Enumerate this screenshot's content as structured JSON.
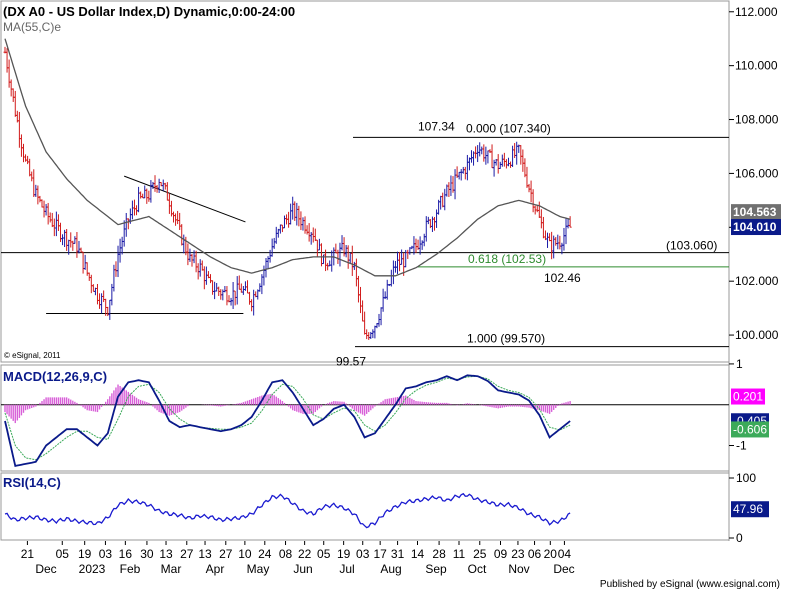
{
  "chart_data": [
    {
      "type": "line",
      "panel": "price",
      "title": "(DX A0 - US Dollar Index,D) Dynamic,0:00-24:00",
      "indicator_label": "MA(55,C)e",
      "copyright": "© eSignal, 2011",
      "ylim": [
        99.0,
        112.4
      ],
      "y_ticks": [
        "112.000",
        "110.000",
        "108.000",
        "106.000",
        "104.000",
        "102.000",
        "100.000"
      ],
      "y_tick_values": [
        112,
        110,
        108,
        106,
        104,
        102,
        100
      ],
      "x_index_range": [
        0,
        240
      ],
      "close_series": {
        "name": "DX A0 close",
        "x": [
          0,
          5,
          10,
          15,
          20,
          25,
          30,
          35,
          40,
          45,
          50,
          55,
          60,
          65,
          70,
          75,
          80,
          85,
          90,
          95,
          100,
          105,
          110,
          115,
          120,
          125,
          130,
          135,
          140,
          145,
          150,
          155,
          160,
          165,
          170,
          175,
          180,
          185,
          190,
          195,
          200,
          205,
          210,
          215,
          220,
          225,
          230,
          235,
          240
        ],
        "y": [
          110.5,
          108.3,
          106.4,
          105.2,
          104.5,
          104.0,
          103.6,
          103.3,
          102.3,
          101.5,
          101.0,
          103.0,
          104.3,
          105.0,
          105.2,
          105.8,
          105.0,
          103.8,
          102.8,
          102.5,
          101.8,
          101.6,
          101.5,
          101.7,
          101.3,
          102.2,
          103.3,
          104.1,
          104.6,
          104.2,
          103.8,
          102.7,
          102.9,
          103.2,
          102.5,
          99.9,
          100.4,
          101.4,
          102.6,
          102.8,
          103.3,
          104.0,
          104.6,
          105.3,
          105.8,
          106.3,
          107.0,
          106.6,
          106.3
        ]
      },
      "close_series_2": {
        "x": [
          240,
          245,
          250,
          255,
          260,
          265,
          270,
          275
        ],
        "y": [
          106.3,
          106.5,
          106.8,
          105.5,
          104.3,
          103.3,
          103.5,
          104.0
        ]
      },
      "ma_series": {
        "name": "MA(55,C)e",
        "x": [
          0,
          10,
          20,
          30,
          40,
          50,
          55,
          60,
          70,
          80,
          90,
          100,
          110,
          120,
          130,
          140,
          150,
          160,
          170,
          180,
          190,
          200,
          210,
          220,
          230,
          240,
          250,
          260,
          270,
          275
        ],
        "y": [
          111.0,
          108.5,
          106.8,
          105.8,
          105.0,
          104.4,
          104.1,
          104.2,
          104.4,
          103.9,
          103.4,
          102.9,
          102.5,
          102.3,
          102.5,
          102.8,
          102.9,
          102.9,
          102.6,
          102.2,
          102.2,
          102.5,
          103.0,
          103.6,
          104.3,
          104.8,
          105.0,
          104.8,
          104.4,
          104.3
        ]
      },
      "current_values": {
        "ma_box": "104.563",
        "price_box": "104.010"
      },
      "horizontal_levels": [
        {
          "price": 107.34,
          "label_right": "0.000 (107.340)",
          "label_left": "107.34",
          "color": "#000000"
        },
        {
          "price": 103.06,
          "label_right": "(103.060)",
          "color": "#000000"
        },
        {
          "price": 102.53,
          "label_right": "0.618 (102.53)",
          "color": "#2e8b2e"
        },
        {
          "price": 99.57,
          "label_right": "1.000 (99.570)",
          "label_left": "99.57",
          "color": "#000000"
        }
      ],
      "annotations": [
        {
          "text": "102.46",
          "price": 102.46
        }
      ],
      "trendlines": [
        {
          "from": [
            58,
            105.9
          ],
          "to": [
            117,
            104.2
          ]
        },
        {
          "from": [
            20,
            100.8
          ],
          "to": [
            116,
            100.8
          ]
        }
      ],
      "grid": false
    },
    {
      "type": "area",
      "panel": "macd",
      "title": "MACD(12,26,9,C)",
      "ylim": [
        -1.6,
        0.9
      ],
      "macd_x": [
        0,
        5,
        10,
        15,
        20,
        25,
        30,
        35,
        40,
        45,
        50,
        55,
        60,
        65,
        70,
        75,
        80,
        85,
        90,
        95,
        100,
        105,
        110,
        115,
        120,
        125,
        130,
        135,
        140,
        145,
        150,
        155,
        160,
        165,
        170,
        175,
        180,
        185,
        190,
        195,
        200,
        205,
        210,
        215,
        220,
        225,
        230,
        235,
        240,
        245,
        250,
        255,
        260,
        265,
        270,
        275
      ],
      "macd_y": [
        -0.4,
        -1.5,
        -1.45,
        -1.4,
        -1.0,
        -0.8,
        -0.6,
        -0.6,
        -0.8,
        -1.0,
        -0.7,
        0.2,
        0.55,
        0.6,
        0.55,
        0.1,
        -0.4,
        -0.55,
        -0.5,
        -0.55,
        -0.6,
        -0.65,
        -0.6,
        -0.5,
        -0.3,
        0.1,
        0.55,
        0.6,
        0.3,
        -0.1,
        -0.5,
        -0.35,
        -0.1,
        0.0,
        -0.3,
        -0.8,
        -0.7,
        -0.35,
        0.0,
        0.4,
        0.45,
        0.55,
        0.6,
        0.7,
        0.6,
        0.72,
        0.7,
        0.58,
        0.35,
        0.3,
        0.25,
        0.1,
        -0.25,
        -0.8,
        -0.6,
        -0.4
      ],
      "signal_y": [
        -0.2,
        -1.0,
        -1.3,
        -1.35,
        -1.2,
        -1.0,
        -0.8,
        -0.65,
        -0.65,
        -0.8,
        -0.85,
        -0.35,
        0.2,
        0.45,
        0.5,
        0.3,
        -0.1,
        -0.35,
        -0.5,
        -0.55,
        -0.58,
        -0.6,
        -0.6,
        -0.55,
        -0.45,
        -0.15,
        0.25,
        0.5,
        0.45,
        0.15,
        -0.25,
        -0.35,
        -0.2,
        -0.08,
        -0.15,
        -0.5,
        -0.65,
        -0.5,
        -0.2,
        0.15,
        0.35,
        0.48,
        0.55,
        0.65,
        0.62,
        0.68,
        0.7,
        0.63,
        0.45,
        0.35,
        0.3,
        0.18,
        -0.1,
        -0.55,
        -0.62,
        -0.5
      ],
      "current_values": {
        "hist": "0.201",
        "macd": "-0.405",
        "signal": "-0.606"
      },
      "y_ticks": [
        "1",
        "-1"
      ],
      "y_tick_values": [
        1,
        -1
      ]
    },
    {
      "type": "line",
      "panel": "rsi",
      "title": "RSI(14,C)",
      "ylim": [
        0,
        100
      ],
      "rsi_x": [
        0,
        5,
        10,
        15,
        20,
        25,
        30,
        35,
        40,
        45,
        50,
        55,
        60,
        65,
        70,
        75,
        80,
        85,
        90,
        95,
        100,
        105,
        110,
        115,
        120,
        125,
        130,
        135,
        140,
        145,
        150,
        155,
        160,
        165,
        170,
        175,
        180,
        185,
        190,
        195,
        200,
        205,
        210,
        215,
        220,
        225,
        230,
        235,
        240,
        245,
        250,
        255,
        260,
        265,
        270,
        275
      ],
      "rsi_y": [
        40,
        30,
        33,
        35,
        30,
        28,
        32,
        28,
        26,
        24,
        34,
        55,
        62,
        60,
        55,
        45,
        40,
        38,
        33,
        37,
        35,
        30,
        32,
        34,
        40,
        55,
        68,
        70,
        58,
        45,
        40,
        52,
        55,
        50,
        40,
        18,
        25,
        42,
        52,
        60,
        62,
        65,
        68,
        62,
        70,
        72,
        64,
        60,
        55,
        56,
        50,
        40,
        35,
        25,
        28,
        40
      ],
      "current_values": {
        "rsi": "47.96"
      },
      "y_ticks": [
        "100",
        "0"
      ],
      "y_tick_values": [
        100,
        0
      ]
    }
  ],
  "x_axis": {
    "day_labels": [
      "21",
      "05",
      "19",
      "03",
      "16",
      "30",
      "13",
      "27",
      "13",
      "27",
      "10",
      "24",
      "08",
      "22",
      "05",
      "19",
      "03",
      "17",
      "31",
      "14",
      "28",
      "11",
      "25",
      "09",
      "23",
      "06",
      "20",
      "04"
    ],
    "month_labels": [
      "Dec",
      "2023",
      "Feb",
      "Mar",
      "Apr",
      "May",
      "Jun",
      "Jul",
      "Aug",
      "Sep",
      "Oct",
      "Nov",
      "Dec"
    ]
  },
  "footer": "Published by eSignal (www.esignal.com)",
  "colors": {
    "up_bar": "#1a1aa6",
    "down_bar": "#d11a1a",
    "ma": "#555555",
    "fib": "#2e8b2e",
    "macd": "#0a1a8a",
    "hist": "#d860d8",
    "rsi": "#1a1ad0",
    "box_pink": "#ff00ff",
    "box_green": "#3caa5a",
    "box_navy": "#0a1a8a",
    "box_gray": "#707070"
  }
}
